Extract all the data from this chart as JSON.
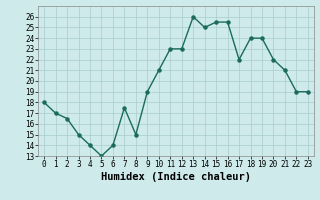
{
  "x": [
    0,
    1,
    2,
    3,
    4,
    5,
    6,
    7,
    8,
    9,
    10,
    11,
    12,
    13,
    14,
    15,
    16,
    17,
    18,
    19,
    20,
    21,
    22,
    23
  ],
  "y": [
    18,
    17,
    16.5,
    15,
    14,
    13,
    14,
    17.5,
    15,
    19,
    21,
    23,
    23,
    26,
    25,
    25.5,
    25.5,
    22,
    24,
    24,
    22,
    21,
    19,
    19
  ],
  "line_color": "#1a6b5e",
  "marker": "o",
  "marker_size": 2.2,
  "bg_color": "#ceeaea",
  "grid_color": "#aacccc",
  "xlabel": "Humidex (Indice chaleur)",
  "ylim": [
    13,
    27
  ],
  "xlim": [
    -0.5,
    23.5
  ],
  "yticks": [
    13,
    14,
    15,
    16,
    17,
    18,
    19,
    20,
    21,
    22,
    23,
    24,
    25,
    26
  ],
  "xtick_labels": [
    "0",
    "1",
    "2",
    "3",
    "4",
    "5",
    "6",
    "7",
    "8",
    "9",
    "10",
    "11",
    "12",
    "13",
    "14",
    "15",
    "16",
    "17",
    "18",
    "19",
    "20",
    "21",
    "22",
    "23"
  ],
  "tick_fontsize": 5.5,
  "xlabel_fontsize": 7.5,
  "linewidth": 1.0
}
